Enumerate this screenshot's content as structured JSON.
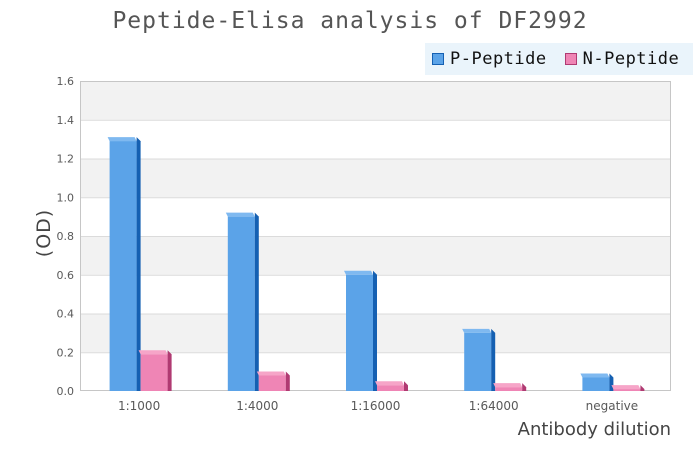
{
  "chart_data": {
    "type": "bar",
    "title": "Peptide-Elisa analysis of DF2992",
    "xlabel": "Antibody dilution",
    "ylabel": "(OD)",
    "categories": [
      "1:1000",
      "1:4000",
      "1:16000",
      "1:64000",
      "negative"
    ],
    "series": [
      {
        "name": "P-Peptide",
        "values": [
          1.29,
          0.9,
          0.6,
          0.3,
          0.07
        ],
        "color": "#5BA3E8",
        "color_top": "#7FB9F0",
        "color_side": "#1560B2"
      },
      {
        "name": "N-Peptide",
        "values": [
          0.19,
          0.08,
          0.03,
          0.02,
          0.01
        ],
        "color": "#EF85B5",
        "color_top": "#F6A5C8",
        "color_side": "#B03A72"
      }
    ],
    "ylim": [
      0,
      1.6
    ],
    "ytick_step": 0.2,
    "grid": true,
    "band_fill": "alternating",
    "legend_position": "top-right"
  },
  "colors": {
    "background": "#FFFFFF",
    "legend_bg": "#EAF4FB",
    "band_gray": "#F2F2F2",
    "gridline": "#DBDBDB",
    "plot_border": "#C6C6C6",
    "title_text": "#555555",
    "axis_title_text": "#444444",
    "tick_text": "#595959",
    "legend_text": "#111111"
  }
}
